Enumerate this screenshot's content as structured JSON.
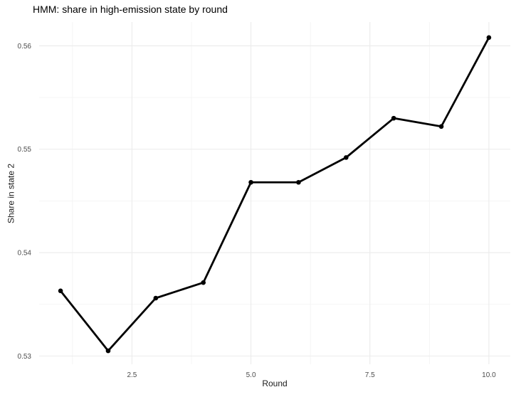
{
  "chart_data": {
    "type": "line",
    "title": "HMM: share in high-emission state by round",
    "xlabel": "Round",
    "ylabel": "Share in state 2",
    "series": [
      {
        "name": "share_in_state_2",
        "x": [
          1,
          2,
          3,
          4,
          5,
          6,
          7,
          8,
          9,
          10
        ],
        "y": [
          0.5363,
          0.5305,
          0.5356,
          0.5371,
          0.5468,
          0.5468,
          0.5492,
          0.553,
          0.5522,
          0.5608
        ]
      }
    ],
    "x_ticks": [
      2.5,
      5.0,
      7.5,
      10.0
    ],
    "x_tick_labels": [
      "2.5",
      "5.0",
      "7.5",
      "10.0"
    ],
    "y_ticks": [
      0.53,
      0.54,
      0.55,
      0.56
    ],
    "y_tick_labels": [
      "0.53",
      "0.54",
      "0.55",
      "0.56"
    ],
    "x_minor_gridlines": [
      1.25,
      3.75,
      6.25,
      8.75
    ],
    "y_minor_gridlines": [
      0.535,
      0.545,
      0.555
    ],
    "xlim": [
      0.55,
      10.45
    ],
    "ylim": [
      0.5292,
      0.5623
    ],
    "grid": true,
    "legend": false,
    "style": {
      "background": "#FFFFFF",
      "line_color": "#000000",
      "point_color": "#000000",
      "major_grid_color": "#EBEBEB",
      "minor_grid_color": "#F4F4F4",
      "tick_label_color": "#4D4D4D",
      "title_color": "#000000",
      "axis_label_color": "#1A1A1A"
    }
  }
}
